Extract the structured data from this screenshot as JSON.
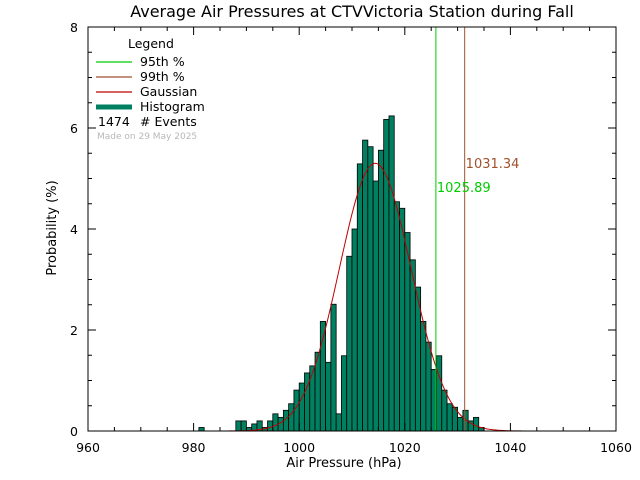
{
  "chart_data": {
    "type": "bar",
    "title": "Average Air Pressures at CTVVictoria Station during Fall",
    "xlabel": "Air Pressure (hPa)",
    "ylabel": "Probability (%)",
    "xlim": [
      960,
      1060
    ],
    "ylim": [
      0,
      8
    ],
    "xticks": [
      "960",
      "980",
      "1000",
      "1020",
      "1040",
      "1060"
    ],
    "yticks": [
      "0",
      "2",
      "4",
      "6",
      "8"
    ],
    "bin_width": 1,
    "bins": [
      [
        981.5,
        0.07
      ],
      [
        988.5,
        0.2
      ],
      [
        989.5,
        0.2
      ],
      [
        990.5,
        0.07
      ],
      [
        991.5,
        0.14
      ],
      [
        992.5,
        0.2
      ],
      [
        993.5,
        0.07
      ],
      [
        994.5,
        0.2
      ],
      [
        995.5,
        0.34
      ],
      [
        996.5,
        0.27
      ],
      [
        997.5,
        0.41
      ],
      [
        998.5,
        0.54
      ],
      [
        999.5,
        0.81
      ],
      [
        1000.5,
        0.95
      ],
      [
        1001.5,
        1.15
      ],
      [
        1002.5,
        1.29
      ],
      [
        1003.5,
        1.56
      ],
      [
        1004.5,
        2.17
      ],
      [
        1005.5,
        1.36
      ],
      [
        1006.5,
        2.51
      ],
      [
        1007.5,
        0.34
      ],
      [
        1008.5,
        1.49
      ],
      [
        1009.5,
        3.46
      ],
      [
        1010.5,
        4.0
      ],
      [
        1011.5,
        5.29
      ],
      [
        1012.5,
        5.76
      ],
      [
        1013.5,
        5.63
      ],
      [
        1014.5,
        4.95
      ],
      [
        1015.5,
        5.56
      ],
      [
        1016.5,
        6.17
      ],
      [
        1017.5,
        6.24
      ],
      [
        1018.5,
        4.54
      ],
      [
        1019.5,
        4.41
      ],
      [
        1020.5,
        3.93
      ],
      [
        1021.5,
        3.39
      ],
      [
        1022.5,
        2.85
      ],
      [
        1023.5,
        2.17
      ],
      [
        1024.5,
        1.76
      ],
      [
        1025.5,
        1.22
      ],
      [
        1026.5,
        1.49
      ],
      [
        1027.5,
        0.81
      ],
      [
        1028.5,
        0.54
      ],
      [
        1029.5,
        0.47
      ],
      [
        1030.5,
        0.27
      ],
      [
        1031.5,
        0.41
      ],
      [
        1032.5,
        0.2
      ],
      [
        1033.5,
        0.27
      ],
      [
        1034.5,
        0.07
      ]
    ],
    "gaussian": {
      "mean": 1014.4,
      "peak": 5.3,
      "sigma": 6.8
    },
    "percentiles": [
      {
        "name": "95th %",
        "value": 1025.89,
        "label": "1025.89",
        "color": "#00cc00"
      },
      {
        "name": "99th %",
        "value": 1031.34,
        "label": "1031.34",
        "color": "#a0522d"
      }
    ],
    "colors": {
      "histogram": "#008060",
      "gaussian": "#c00000",
      "axes": "#000000"
    },
    "legend": {
      "title": "Legend",
      "placement": "top-left",
      "items": [
        {
          "label": "95th %",
          "color": "#00cc00",
          "kind": "line"
        },
        {
          "label": "99th %",
          "color": "#a0522d",
          "kind": "line"
        },
        {
          "label": "Gaussian",
          "color": "#c00000",
          "kind": "line"
        },
        {
          "label": "Histogram",
          "color": "#008060",
          "kind": "bar"
        }
      ],
      "events_count": "1474",
      "events_label": "# Events"
    },
    "stamp": "Made on 29 May 2025"
  }
}
